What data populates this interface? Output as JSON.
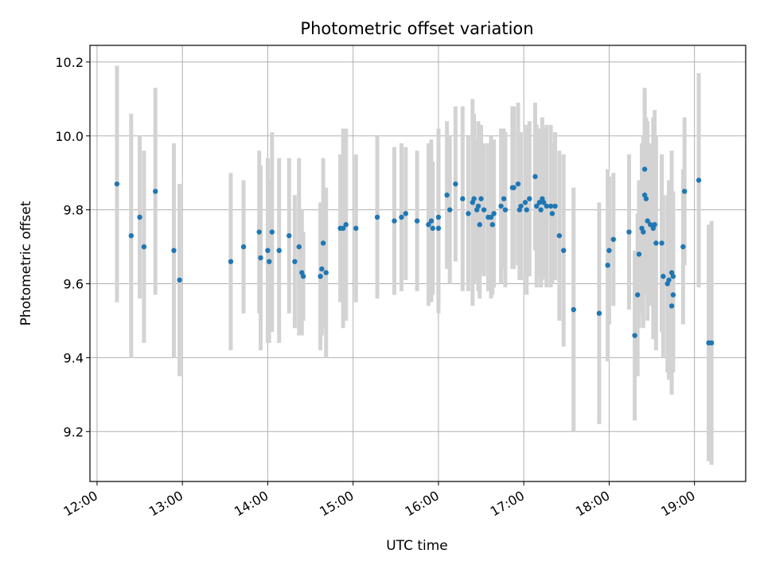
{
  "chart_data": {
    "type": "scatter",
    "title": "Photometric offset variation",
    "xlabel": "UTC time",
    "ylabel": "Photometric offset",
    "x_unit": "UTC time of day",
    "xlim": [
      "11:55",
      "19:36"
    ],
    "ylim": [
      9.065,
      10.245
    ],
    "x_ticks": [
      "12:00",
      "13:00",
      "14:00",
      "15:00",
      "16:00",
      "17:00",
      "18:00",
      "19:00"
    ],
    "y_ticks": [
      "9.2",
      "9.4",
      "9.6",
      "9.8",
      "10.0",
      "10.2"
    ],
    "y_tick_values": [
      9.2,
      9.4,
      9.6,
      9.8,
      10.0,
      10.2
    ],
    "grid": true,
    "marker_color": "#1f77b4",
    "errorbar_color": "#d3d3d3",
    "points": [
      {
        "x": "12:14",
        "y": 9.87,
        "err": 0.32
      },
      {
        "x": "12:24",
        "y": 9.73,
        "err": 0.33
      },
      {
        "x": "12:30",
        "y": 9.78,
        "err": 0.22
      },
      {
        "x": "12:33",
        "y": 9.7,
        "err": 0.26
      },
      {
        "x": "12:41",
        "y": 9.85,
        "err": 0.28
      },
      {
        "x": "12:54",
        "y": 9.69,
        "err": 0.29
      },
      {
        "x": "12:58",
        "y": 9.61,
        "err": 0.26
      },
      {
        "x": "13:34",
        "y": 9.66,
        "err": 0.24
      },
      {
        "x": "13:43",
        "y": 9.7,
        "err": 0.18
      },
      {
        "x": "13:54",
        "y": 9.74,
        "err": 0.22
      },
      {
        "x": "13:55",
        "y": 9.67,
        "err": 0.25
      },
      {
        "x": "14:00",
        "y": 9.69,
        "err": 0.25
      },
      {
        "x": "14:01",
        "y": 9.66,
        "err": 0.22
      },
      {
        "x": "14:03",
        "y": 9.74,
        "err": 0.27
      },
      {
        "x": "14:08",
        "y": 9.69,
        "err": 0.25
      },
      {
        "x": "14:15",
        "y": 9.73,
        "err": 0.21
      },
      {
        "x": "14:19",
        "y": 9.66,
        "err": 0.18
      },
      {
        "x": "14:22",
        "y": 9.7,
        "err": 0.24
      },
      {
        "x": "14:24",
        "y": 9.63,
        "err": 0.17
      },
      {
        "x": "14:25",
        "y": 9.62,
        "err": 0.12
      },
      {
        "x": "14:37",
        "y": 9.62,
        "err": 0.2
      },
      {
        "x": "14:38",
        "y": 9.64,
        "err": 0.18
      },
      {
        "x": "14:39",
        "y": 9.71,
        "err": 0.23
      },
      {
        "x": "14:41",
        "y": 9.63,
        "err": 0.23
      },
      {
        "x": "14:51",
        "y": 9.75,
        "err": 0.2
      },
      {
        "x": "14:53",
        "y": 9.75,
        "err": 0.27
      },
      {
        "x": "14:55",
        "y": 9.76,
        "err": 0.26
      },
      {
        "x": "15:02",
        "y": 9.75,
        "err": 0.2
      },
      {
        "x": "15:17",
        "y": 9.78,
        "err": 0.22
      },
      {
        "x": "15:29",
        "y": 9.77,
        "err": 0.2
      },
      {
        "x": "15:34",
        "y": 9.78,
        "err": 0.2
      },
      {
        "x": "15:37",
        "y": 9.79,
        "err": 0.18
      },
      {
        "x": "15:45",
        "y": 9.77,
        "err": 0.19
      },
      {
        "x": "15:53",
        "y": 9.76,
        "err": 0.22
      },
      {
        "x": "15:55",
        "y": 9.77,
        "err": 0.22
      },
      {
        "x": "15:56",
        "y": 9.75,
        "err": 0.18
      },
      {
        "x": "16:00",
        "y": 9.78,
        "err": 0.24
      },
      {
        "x": "16:00",
        "y": 9.75,
        "err": 0.23
      },
      {
        "x": "16:06",
        "y": 9.84,
        "err": 0.2
      },
      {
        "x": "16:08",
        "y": 9.8,
        "err": 0.2
      },
      {
        "x": "16:12",
        "y": 9.87,
        "err": 0.21
      },
      {
        "x": "16:17",
        "y": 9.83,
        "err": 0.25
      },
      {
        "x": "16:21",
        "y": 9.79,
        "err": 0.21
      },
      {
        "x": "16:24",
        "y": 9.82,
        "err": 0.28
      },
      {
        "x": "16:25",
        "y": 9.83,
        "err": 0.23
      },
      {
        "x": "16:27",
        "y": 9.8,
        "err": 0.19
      },
      {
        "x": "16:28",
        "y": 9.81,
        "err": 0.23
      },
      {
        "x": "16:29",
        "y": 9.76,
        "err": 0.2
      },
      {
        "x": "16:30",
        "y": 9.83,
        "err": 0.2
      },
      {
        "x": "16:32",
        "y": 9.8,
        "err": 0.18
      },
      {
        "x": "16:35",
        "y": 9.78,
        "err": 0.2
      },
      {
        "x": "16:37",
        "y": 9.78,
        "err": 0.22
      },
      {
        "x": "16:38",
        "y": 9.76,
        "err": 0.19
      },
      {
        "x": "16:39",
        "y": 9.79,
        "err": 0.2
      },
      {
        "x": "16:44",
        "y": 9.81,
        "err": 0.21
      },
      {
        "x": "16:46",
        "y": 9.83,
        "err": 0.19
      },
      {
        "x": "16:47",
        "y": 9.8,
        "err": 0.21
      },
      {
        "x": "16:52",
        "y": 9.86,
        "err": 0.22
      },
      {
        "x": "16:53",
        "y": 9.86,
        "err": 0.22
      },
      {
        "x": "16:56",
        "y": 9.87,
        "err": 0.22
      },
      {
        "x": "16:57",
        "y": 9.8,
        "err": 0.19
      },
      {
        "x": "16:58",
        "y": 9.81,
        "err": 0.2
      },
      {
        "x": "17:01",
        "y": 9.82,
        "err": 0.2
      },
      {
        "x": "17:02",
        "y": 9.8,
        "err": 0.23
      },
      {
        "x": "17:04",
        "y": 9.83,
        "err": 0.21
      },
      {
        "x": "17:08",
        "y": 9.89,
        "err": 0.2
      },
      {
        "x": "17:09",
        "y": 9.81,
        "err": 0.22
      },
      {
        "x": "17:11",
        "y": 9.82,
        "err": 0.2
      },
      {
        "x": "17:12",
        "y": 9.8,
        "err": 0.21
      },
      {
        "x": "17:13",
        "y": 9.83,
        "err": 0.22
      },
      {
        "x": "17:14",
        "y": 9.82,
        "err": 0.2
      },
      {
        "x": "17:16",
        "y": 9.81,
        "err": 0.22
      },
      {
        "x": "17:19",
        "y": 9.81,
        "err": 0.22
      },
      {
        "x": "17:20",
        "y": 9.79,
        "err": 0.19
      },
      {
        "x": "17:22",
        "y": 9.81,
        "err": 0.2
      },
      {
        "x": "17:25",
        "y": 9.73,
        "err": 0.23
      },
      {
        "x": "17:28",
        "y": 9.69,
        "err": 0.26
      },
      {
        "x": "17:35",
        "y": 9.53,
        "err": 0.33
      },
      {
        "x": "17:53",
        "y": 9.52,
        "err": 0.3
      },
      {
        "x": "17:59",
        "y": 9.65,
        "err": 0.26
      },
      {
        "x": "18:00",
        "y": 9.69,
        "err": 0.2
      },
      {
        "x": "18:03",
        "y": 9.72,
        "err": 0.18
      },
      {
        "x": "18:14",
        "y": 9.74,
        "err": 0.21
      },
      {
        "x": "18:18",
        "y": 9.46,
        "err": 0.23
      },
      {
        "x": "18:20",
        "y": 9.57,
        "err": 0.22
      },
      {
        "x": "18:21",
        "y": 9.68,
        "err": 0.2
      },
      {
        "x": "18:23",
        "y": 9.75,
        "err": 0.23
      },
      {
        "x": "18:24",
        "y": 9.74,
        "err": 0.26
      },
      {
        "x": "18:25",
        "y": 9.91,
        "err": 0.22
      },
      {
        "x": "18:25",
        "y": 9.84,
        "err": 0.27
      },
      {
        "x": "18:26",
        "y": 9.83,
        "err": 0.22
      },
      {
        "x": "18:27",
        "y": 9.77,
        "err": 0.27
      },
      {
        "x": "18:29",
        "y": 9.76,
        "err": 0.22
      },
      {
        "x": "18:31",
        "y": 9.75,
        "err": 0.3
      },
      {
        "x": "18:32",
        "y": 9.76,
        "err": 0.31
      },
      {
        "x": "18:33",
        "y": 9.71,
        "err": 0.29
      },
      {
        "x": "18:37",
        "y": 9.71,
        "err": 0.24
      },
      {
        "x": "18:38",
        "y": 9.62,
        "err": 0.22
      },
      {
        "x": "18:41",
        "y": 9.6,
        "err": 0.24
      },
      {
        "x": "18:42",
        "y": 9.61,
        "err": 0.27
      },
      {
        "x": "18:44",
        "y": 9.63,
        "err": 0.33
      },
      {
        "x": "18:44",
        "y": 9.54,
        "err": 0.22
      },
      {
        "x": "18:45",
        "y": 9.57,
        "err": 0.21
      },
      {
        "x": "18:45",
        "y": 9.62,
        "err": 0.23
      },
      {
        "x": "18:52",
        "y": 9.7,
        "err": 0.21
      },
      {
        "x": "18:53",
        "y": 9.85,
        "err": 0.2
      },
      {
        "x": "19:03",
        "y": 9.88,
        "err": 0.29
      },
      {
        "x": "19:10",
        "y": 9.44,
        "err": 0.32
      },
      {
        "x": "19:12",
        "y": 9.44,
        "err": 0.33
      }
    ]
  }
}
